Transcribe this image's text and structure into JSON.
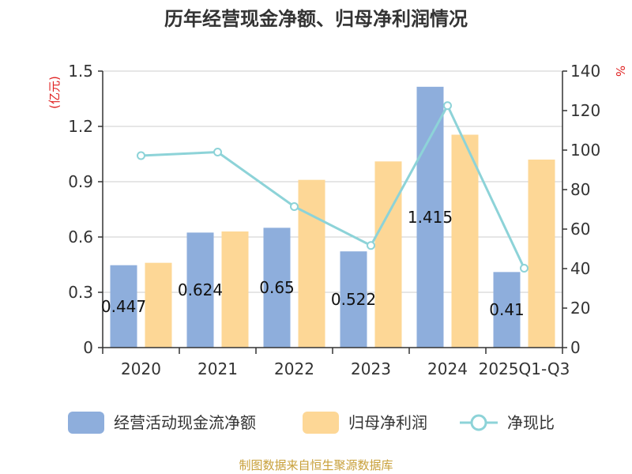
{
  "chart_data": {
    "type": "bar",
    "title": "历年经营现金净额、归母净利润情况",
    "categories": [
      "2020",
      "2021",
      "2022",
      "2023",
      "2024",
      "2025Q1-Q3"
    ],
    "series": [
      {
        "name": "经营活动现金流净额",
        "type": "bar",
        "axis": "left",
        "color": "#8eaedc",
        "values": [
          0.447,
          0.624,
          0.65,
          0.522,
          1.415,
          0.41
        ],
        "data_labels": [
          "0.447",
          "0.624",
          "0.65",
          "0.522",
          "1.415",
          "0.41"
        ]
      },
      {
        "name": "归母净利润",
        "type": "bar",
        "axis": "left",
        "color": "#fdd796",
        "values": [
          0.46,
          0.63,
          0.91,
          1.01,
          1.155,
          1.02
        ]
      },
      {
        "name": "净现比",
        "type": "line",
        "axis": "right",
        "color": "#8dd3d8",
        "values": [
          97.2,
          99.0,
          71.4,
          51.7,
          122.5,
          40.2
        ]
      }
    ],
    "left_axis": {
      "unit": "(亿元)",
      "ylim": [
        0,
        1.5
      ],
      "ticks": [
        "0",
        "0.3",
        "0.6",
        "0.9",
        "1.2",
        "1.5"
      ]
    },
    "right_axis": {
      "unit": "%",
      "ylim": [
        0,
        140
      ],
      "ticks": [
        "0",
        "20",
        "40",
        "60",
        "80",
        "100",
        "120",
        "140"
      ]
    },
    "grid": true,
    "legend_position": "bottom"
  },
  "source_note": "制图数据来自恒生聚源数据库"
}
